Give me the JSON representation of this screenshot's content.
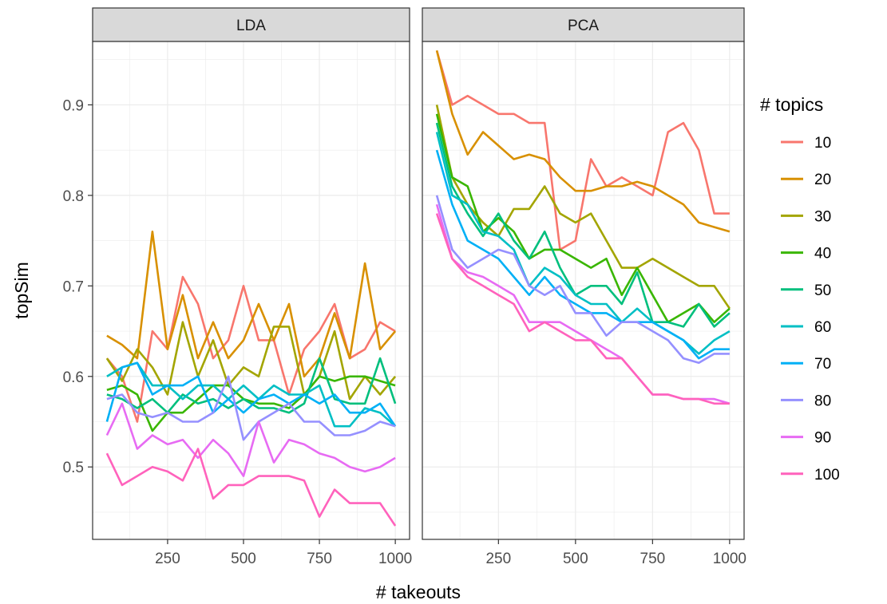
{
  "chart_data": {
    "type": "line",
    "facets": [
      "LDA",
      "PCA"
    ],
    "xlabel": "# takeouts",
    "ylabel": "topSim",
    "xlim": [
      50,
      1000
    ],
    "ylim": [
      0.42,
      0.97
    ],
    "x_ticks": [
      250,
      500,
      750,
      1000
    ],
    "x_tick_labels": [
      "250",
      "500",
      "750",
      "1000"
    ],
    "y_ticks": [
      0.5,
      0.6,
      0.7,
      0.8,
      0.9
    ],
    "y_tick_labels": [
      "0.5",
      "0.6",
      "0.7",
      "0.8",
      "0.9"
    ],
    "grid": true,
    "legend": {
      "title": "# topics",
      "position": "right"
    },
    "x": [
      50,
      100,
      150,
      200,
      250,
      300,
      350,
      400,
      450,
      500,
      550,
      600,
      650,
      700,
      750,
      800,
      850,
      900,
      950,
      1000
    ],
    "series": [
      {
        "name": "10",
        "color": "#F8766D",
        "LDA": [
          0.62,
          0.6,
          0.55,
          0.65,
          0.63,
          0.71,
          0.68,
          0.62,
          0.64,
          0.7,
          0.64,
          0.64,
          0.58,
          0.63,
          0.65,
          0.68,
          0.62,
          0.63,
          0.66,
          0.65
        ],
        "PCA": [
          0.96,
          0.9,
          0.91,
          0.9,
          0.89,
          0.89,
          0.88,
          0.88,
          0.74,
          0.75,
          0.84,
          0.81,
          0.82,
          0.81,
          0.8,
          0.87,
          0.88,
          0.85,
          0.78,
          0.78
        ]
      },
      {
        "name": "20",
        "color": "#D89000",
        "LDA": [
          0.645,
          0.635,
          0.62,
          0.76,
          0.63,
          0.69,
          0.62,
          0.66,
          0.62,
          0.64,
          0.68,
          0.64,
          0.68,
          0.6,
          0.62,
          0.67,
          0.62,
          0.725,
          0.63,
          0.65
        ],
        "PCA": [
          0.96,
          0.89,
          0.845,
          0.87,
          0.855,
          0.84,
          0.845,
          0.84,
          0.82,
          0.805,
          0.805,
          0.81,
          0.81,
          0.815,
          0.81,
          0.8,
          0.79,
          0.77,
          0.765,
          0.76
        ]
      },
      {
        "name": "30",
        "color": "#A3A500",
        "LDA": [
          0.62,
          0.595,
          0.63,
          0.61,
          0.58,
          0.66,
          0.6,
          0.64,
          0.59,
          0.61,
          0.6,
          0.655,
          0.655,
          0.58,
          0.6,
          0.65,
          0.575,
          0.6,
          0.58,
          0.6
        ],
        "PCA": [
          0.9,
          0.82,
          0.79,
          0.77,
          0.755,
          0.785,
          0.785,
          0.81,
          0.78,
          0.77,
          0.78,
          0.75,
          0.72,
          0.72,
          0.73,
          0.72,
          0.71,
          0.7,
          0.7,
          0.675
        ]
      },
      {
        "name": "40",
        "color": "#39B600",
        "LDA": [
          0.585,
          0.59,
          0.58,
          0.54,
          0.56,
          0.56,
          0.575,
          0.59,
          0.59,
          0.575,
          0.57,
          0.57,
          0.565,
          0.58,
          0.6,
          0.595,
          0.6,
          0.6,
          0.595,
          0.59
        ],
        "PCA": [
          0.89,
          0.82,
          0.81,
          0.76,
          0.775,
          0.76,
          0.73,
          0.74,
          0.74,
          0.73,
          0.72,
          0.73,
          0.69,
          0.72,
          0.69,
          0.66,
          0.67,
          0.68,
          0.66,
          0.675
        ]
      },
      {
        "name": "50",
        "color": "#00BF7D",
        "LDA": [
          0.58,
          0.575,
          0.565,
          0.575,
          0.56,
          0.58,
          0.57,
          0.575,
          0.565,
          0.575,
          0.565,
          0.565,
          0.56,
          0.57,
          0.62,
          0.575,
          0.57,
          0.57,
          0.62,
          0.57
        ],
        "PCA": [
          0.88,
          0.81,
          0.78,
          0.755,
          0.78,
          0.75,
          0.73,
          0.76,
          0.72,
          0.69,
          0.7,
          0.7,
          0.68,
          0.715,
          0.66,
          0.66,
          0.655,
          0.68,
          0.655,
          0.67
        ]
      },
      {
        "name": "60",
        "color": "#00BFC4",
        "LDA": [
          0.6,
          0.61,
          0.615,
          0.59,
          0.59,
          0.575,
          0.59,
          0.59,
          0.575,
          0.59,
          0.575,
          0.59,
          0.58,
          0.58,
          0.59,
          0.545,
          0.545,
          0.565,
          0.56,
          0.545
        ],
        "PCA": [
          0.87,
          0.8,
          0.79,
          0.76,
          0.755,
          0.74,
          0.7,
          0.72,
          0.71,
          0.69,
          0.68,
          0.68,
          0.66,
          0.675,
          0.66,
          0.65,
          0.64,
          0.625,
          0.64,
          0.65
        ]
      },
      {
        "name": "70",
        "color": "#00B0F6",
        "LDA": [
          0.55,
          0.61,
          0.615,
          0.58,
          0.59,
          0.59,
          0.6,
          0.56,
          0.575,
          0.56,
          0.575,
          0.58,
          0.57,
          0.58,
          0.57,
          0.58,
          0.56,
          0.56,
          0.57,
          0.545
        ],
        "PCA": [
          0.85,
          0.79,
          0.75,
          0.74,
          0.73,
          0.71,
          0.69,
          0.71,
          0.69,
          0.68,
          0.67,
          0.67,
          0.66,
          0.66,
          0.66,
          0.65,
          0.64,
          0.62,
          0.63,
          0.63
        ]
      },
      {
        "name": "80",
        "color": "#9590FF",
        "LDA": [
          0.575,
          0.58,
          0.56,
          0.555,
          0.56,
          0.55,
          0.55,
          0.56,
          0.6,
          0.53,
          0.55,
          0.56,
          0.57,
          0.55,
          0.55,
          0.535,
          0.535,
          0.54,
          0.55,
          0.545
        ],
        "PCA": [
          0.8,
          0.74,
          0.72,
          0.73,
          0.74,
          0.735,
          0.7,
          0.69,
          0.7,
          0.67,
          0.67,
          0.645,
          0.66,
          0.66,
          0.65,
          0.64,
          0.62,
          0.615,
          0.625,
          0.625
        ]
      },
      {
        "name": "90",
        "color": "#E76BF3",
        "LDA": [
          0.535,
          0.57,
          0.52,
          0.535,
          0.525,
          0.53,
          0.51,
          0.53,
          0.515,
          0.49,
          0.55,
          0.505,
          0.53,
          0.525,
          0.515,
          0.51,
          0.5,
          0.495,
          0.5,
          0.51
        ],
        "PCA": [
          0.79,
          0.73,
          0.715,
          0.71,
          0.7,
          0.69,
          0.66,
          0.66,
          0.66,
          0.65,
          0.64,
          0.63,
          0.62,
          0.6,
          0.58,
          0.58,
          0.575,
          0.575,
          0.575,
          0.57
        ]
      },
      {
        "name": "100",
        "color": "#FF62BC",
        "LDA": [
          0.515,
          0.48,
          0.49,
          0.5,
          0.495,
          0.485,
          0.52,
          0.465,
          0.48,
          0.48,
          0.49,
          0.49,
          0.49,
          0.485,
          0.445,
          0.475,
          0.46,
          0.46,
          0.46,
          0.435
        ],
        "PCA": [
          0.78,
          0.73,
          0.71,
          0.7,
          0.69,
          0.68,
          0.65,
          0.66,
          0.65,
          0.64,
          0.64,
          0.62,
          0.62,
          0.6,
          0.58,
          0.58,
          0.575,
          0.575,
          0.57,
          0.57
        ]
      }
    ]
  }
}
